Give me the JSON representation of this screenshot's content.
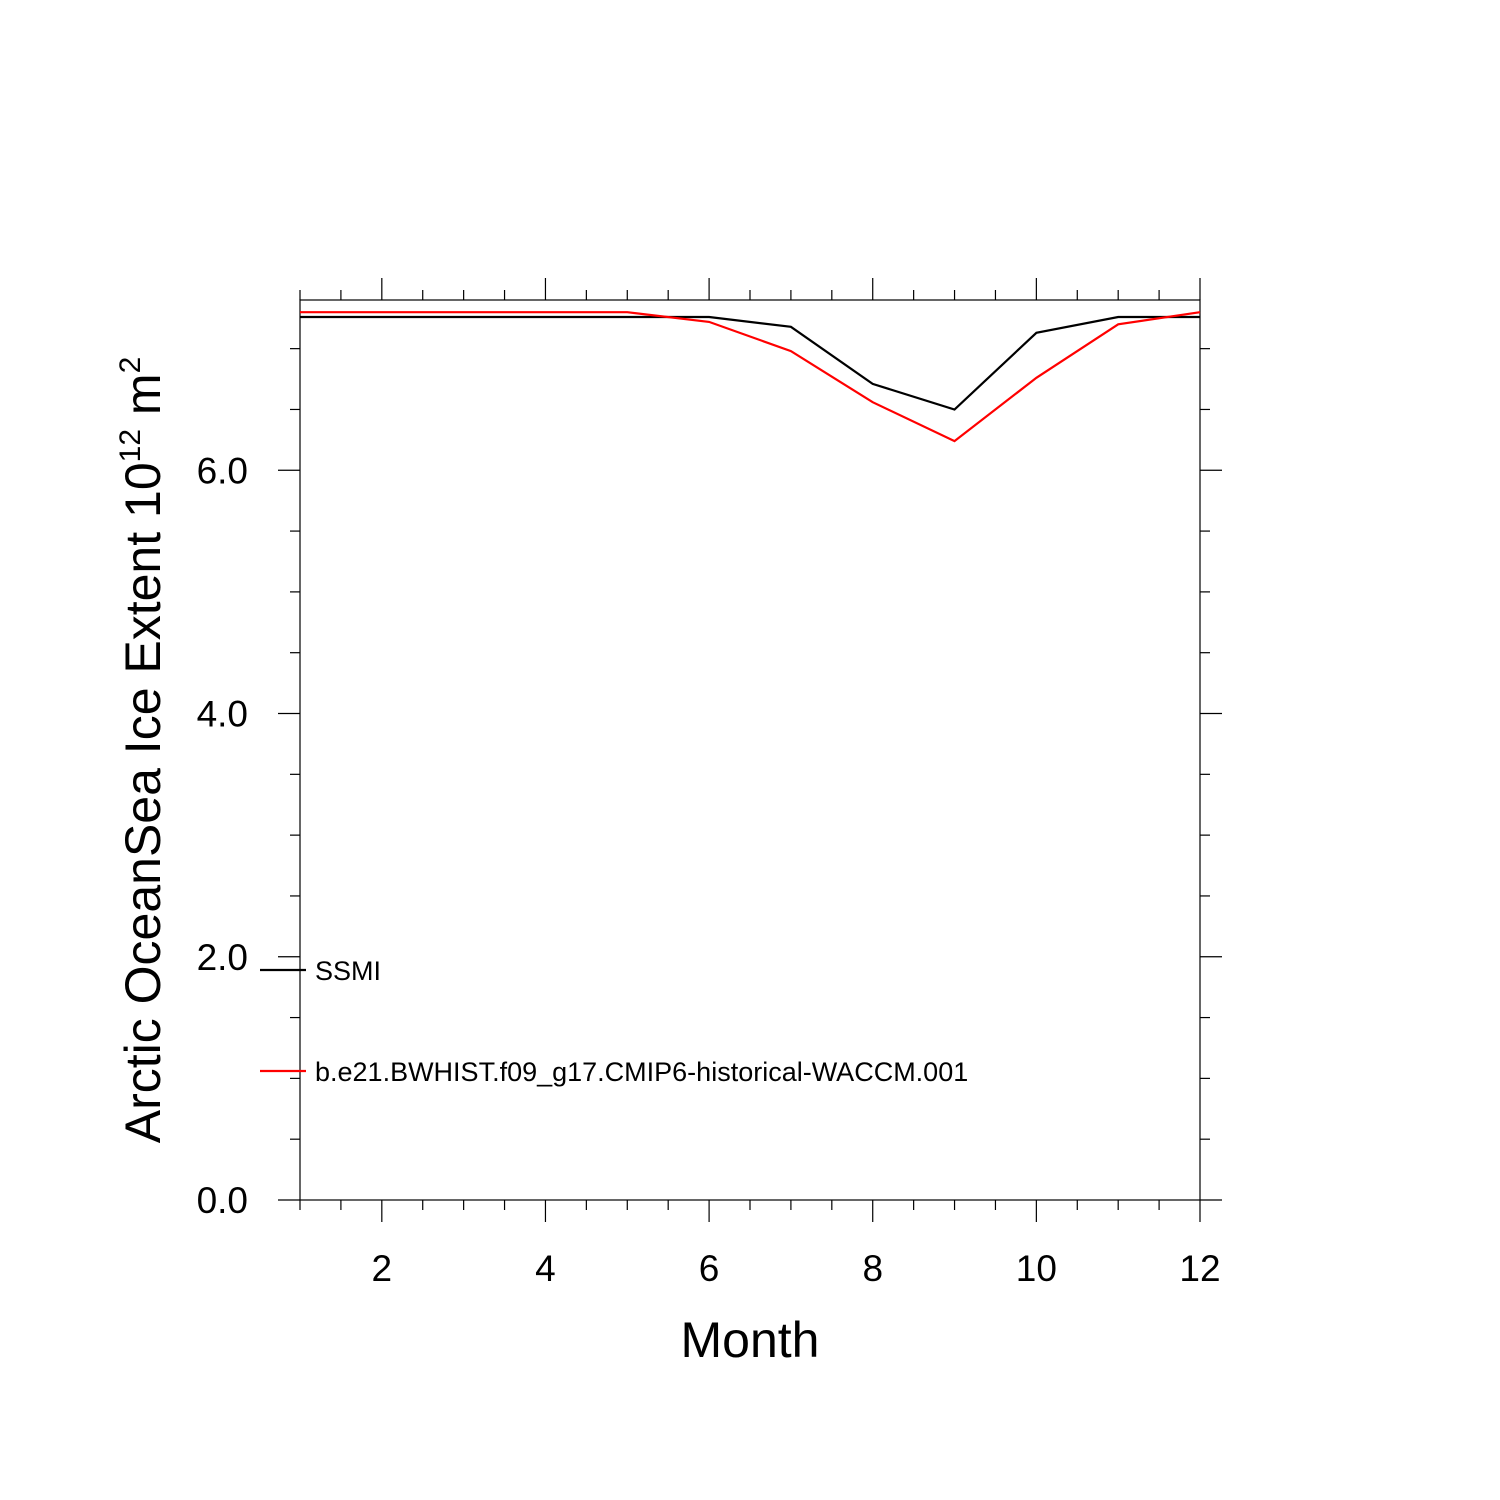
{
  "chart_data": {
    "type": "line",
    "title": "",
    "xlabel": "Month",
    "ylabel": "Arctic OceanSea Ice Extent 10",
    "ylabel_exponent": "12",
    "ylabel_unit": " m",
    "ylabel_unit_exponent": "2",
    "xlim": [
      1,
      12
    ],
    "ylim": [
      0,
      7.4
    ],
    "x_ticks": [
      2,
      4,
      6,
      8,
      10,
      12
    ],
    "x_tick_labels": [
      "2",
      "4",
      "6",
      "8",
      "10",
      "12"
    ],
    "y_ticks": [
      0,
      2,
      4,
      6
    ],
    "y_tick_labels": [
      "0.0",
      "2.0",
      "4.0",
      "6.0"
    ],
    "x": [
      1,
      2,
      3,
      4,
      5,
      6,
      7,
      8,
      9,
      10,
      11,
      12
    ],
    "grid": false,
    "legend_placement": "lower-left",
    "series": [
      {
        "name": "SSMI",
        "color": "#000000",
        "values": [
          7.26,
          7.26,
          7.26,
          7.26,
          7.26,
          7.26,
          7.18,
          6.71,
          6.5,
          7.13,
          7.26,
          7.26
        ]
      },
      {
        "name": "b.e21.BWHIST.f09_g17.CMIP6-historical-WACCM.001",
        "color": "#ff0000",
        "values": [
          7.3,
          7.3,
          7.3,
          7.3,
          7.3,
          7.22,
          6.98,
          6.56,
          6.24,
          6.76,
          7.2,
          7.3
        ]
      }
    ]
  }
}
